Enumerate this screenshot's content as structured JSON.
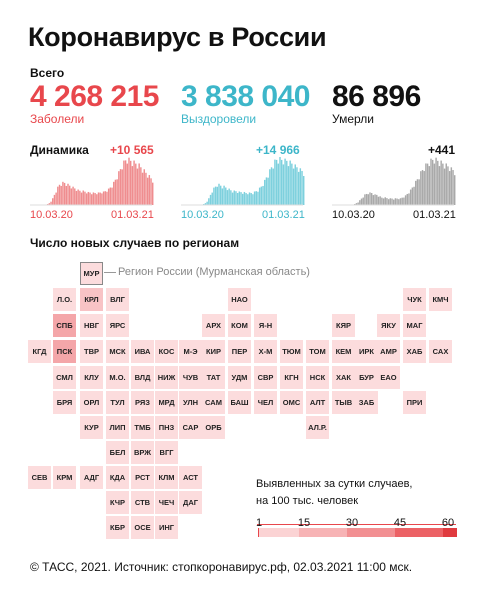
{
  "title": "Коронавирус в России",
  "total_label": "Всего",
  "stats": {
    "cases": {
      "value": "4 268 215",
      "label": "Заболели",
      "color": "#e8474c"
    },
    "recovered": {
      "value": "3 838 040",
      "label": "Выздоровели",
      "color": "#3db6c9"
    },
    "deaths": {
      "value": "86 896",
      "label": "Умерли",
      "color": "#111111"
    }
  },
  "dynamics": {
    "label": "Динамика",
    "cases_delta": "+10 565",
    "recovered_delta": "+14 966",
    "deaths_delta": "+441",
    "date_start": "10.03.20",
    "date_end": "01.03.21"
  },
  "regions_title": "Число новых случаев по регионам",
  "murmansk_note": "Регион России (Мурманская область)",
  "legend": {
    "line1": "Выявленных за сутки случаев,",
    "line2": "на 100 тыс. человек",
    "ticks": [
      "1",
      "15",
      "30",
      "45",
      "60"
    ]
  },
  "footer": "© ТАСС, 2021. Источник: стопкоронавирус.рф, 02.03.2021 11:00 мск.",
  "chart_data": {
    "type": "area",
    "charts": [
      {
        "name": "Заболели",
        "color": "#ef8d8f",
        "x_start": "10.03.20",
        "x_end": "01.03.21",
        "last_value_label": "+10 565",
        "values": [
          0,
          0,
          0,
          0,
          0,
          0,
          0,
          0,
          0,
          0,
          2,
          4,
          8,
          14,
          22,
          30,
          38,
          44,
          46,
          48,
          48,
          46,
          44,
          42,
          40,
          38,
          36,
          34,
          32,
          31,
          30,
          30,
          29,
          28,
          27,
          27,
          26,
          26,
          26,
          26,
          26,
          27,
          28,
          28,
          30,
          32,
          34,
          38,
          42,
          48,
          55,
          62,
          70,
          78,
          86,
          92,
          97,
          100,
          98,
          96,
          94,
          92,
          90,
          88,
          86,
          82,
          78,
          74,
          70,
          66,
          62,
          58,
          54
        ]
      },
      {
        "name": "Выздоровели",
        "color": "#7dd0dd",
        "x_start": "10.03.20",
        "x_end": "01.03.21",
        "last_value_label": "+14 966",
        "values": [
          0,
          0,
          0,
          0,
          0,
          0,
          0,
          0,
          0,
          0,
          0,
          0,
          1,
          2,
          4,
          8,
          14,
          22,
          30,
          36,
          40,
          44,
          44,
          42,
          40,
          40,
          38,
          36,
          34,
          32,
          30,
          30,
          30,
          29,
          28,
          28,
          27,
          27,
          26,
          26,
          26,
          26,
          26,
          28,
          30,
          32,
          36,
          40,
          46,
          52,
          60,
          66,
          74,
          82,
          88,
          94,
          98,
          100,
          100,
          98,
          98,
          96,
          96,
          94,
          92,
          90,
          88,
          84,
          82,
          80,
          76,
          74,
          70
        ]
      },
      {
        "name": "Умерли",
        "color": "#a9a9a9",
        "x_start": "10.03.20",
        "x_end": "01.03.21",
        "last_value_label": "+441",
        "values": [
          0,
          0,
          0,
          0,
          0,
          0,
          0,
          0,
          0,
          0,
          0,
          0,
          1,
          2,
          4,
          6,
          10,
          14,
          18,
          22,
          24,
          26,
          26,
          26,
          24,
          22,
          22,
          20,
          18,
          16,
          16,
          16,
          15,
          14,
          14,
          14,
          13,
          14,
          14,
          14,
          14,
          16,
          18,
          20,
          24,
          28,
          32,
          38,
          44,
          50,
          56,
          62,
          70,
          76,
          82,
          86,
          90,
          94,
          96,
          98,
          100,
          98,
          96,
          94,
          92,
          90,
          88,
          86,
          84,
          82,
          78,
          76,
          72
        ]
      }
    ]
  },
  "regions": [
    {
      "code": "МУР",
      "highlight": true,
      "level": "c"
    },
    {
      "code": "Л.О.",
      "level": "c"
    },
    {
      "code": "КРЛ",
      "level": "b"
    },
    {
      "code": "ВЛГ",
      "level": "c"
    },
    {
      "code": "НАО",
      "level": "c"
    },
    {
      "code": "ЧУК",
      "level": "c"
    },
    {
      "code": "КМЧ",
      "level": "c"
    },
    {
      "code": "СПБ",
      "level": "a"
    },
    {
      "code": "НВГ",
      "level": "c"
    },
    {
      "code": "ЯРС",
      "level": "c"
    },
    {
      "code": "АРХ",
      "level": "c"
    },
    {
      "code": "КОМ",
      "level": "c"
    },
    {
      "code": "Я-Н",
      "level": "c"
    },
    {
      "code": "КЯР",
      "level": "c"
    },
    {
      "code": "ЯКУ",
      "level": "c"
    },
    {
      "code": "МАГ",
      "level": "c"
    },
    {
      "code": "КГД",
      "level": "c"
    },
    {
      "code": "ПСК",
      "level": "a"
    },
    {
      "code": "ТВР",
      "level": "c"
    },
    {
      "code": "МСК",
      "level": "c"
    },
    {
      "code": "ИВА",
      "level": "c"
    },
    {
      "code": "КОС",
      "level": "c"
    },
    {
      "code": "М-Э",
      "level": "c"
    },
    {
      "code": "КИР",
      "level": "c"
    },
    {
      "code": "ПЕР",
      "level": "c"
    },
    {
      "code": "Х-М",
      "level": "c"
    },
    {
      "code": "ТЮМ",
      "level": "c"
    },
    {
      "code": "ТОМ",
      "level": "c"
    },
    {
      "code": "КЕМ",
      "level": "c"
    },
    {
      "code": "ИРК",
      "level": "c"
    },
    {
      "code": "АМР",
      "level": "c"
    },
    {
      "code": "ХАБ",
      "level": "c"
    },
    {
      "code": "САХ",
      "level": "c"
    },
    {
      "code": "СМЛ",
      "level": "c"
    },
    {
      "code": "КЛУ",
      "level": "c"
    },
    {
      "code": "М.О.",
      "level": "c"
    },
    {
      "code": "ВЛД",
      "level": "c"
    },
    {
      "code": "НИЖ",
      "level": "c"
    },
    {
      "code": "ЧУВ",
      "level": "c"
    },
    {
      "code": "ТАТ",
      "level": "c"
    },
    {
      "code": "УДМ",
      "level": "c"
    },
    {
      "code": "СВР",
      "level": "c"
    },
    {
      "code": "КГН",
      "level": "c"
    },
    {
      "code": "НСК",
      "level": "c"
    },
    {
      "code": "ХАК",
      "level": "c"
    },
    {
      "code": "БУР",
      "level": "c"
    },
    {
      "code": "ЕАО",
      "level": "c"
    },
    {
      "code": "БРЯ",
      "level": "c"
    },
    {
      "code": "ОРЛ",
      "level": "c"
    },
    {
      "code": "ТУЛ",
      "level": "c"
    },
    {
      "code": "РЯЗ",
      "level": "c"
    },
    {
      "code": "МРД",
      "level": "c"
    },
    {
      "code": "УЛН",
      "level": "c"
    },
    {
      "code": "САМ",
      "level": "c"
    },
    {
      "code": "БАШ",
      "level": "c"
    },
    {
      "code": "ЧЕЛ",
      "level": "c"
    },
    {
      "code": "ОМС",
      "level": "c"
    },
    {
      "code": "АЛТ",
      "level": "c"
    },
    {
      "code": "ТЫВ",
      "level": "c"
    },
    {
      "code": "ЗАБ",
      "level": "c"
    },
    {
      "code": "ПРИ",
      "level": "c"
    },
    {
      "code": "КУР",
      "level": "c"
    },
    {
      "code": "ЛИП",
      "level": "c"
    },
    {
      "code": "ТМБ",
      "level": "c"
    },
    {
      "code": "ПНЗ",
      "level": "c"
    },
    {
      "code": "САР",
      "level": "c"
    },
    {
      "code": "ОРБ",
      "level": "c"
    },
    {
      "code": "АЛ.Р.",
      "level": "c"
    },
    {
      "code": "БЕЛ",
      "level": "c"
    },
    {
      "code": "ВРЖ",
      "level": "c"
    },
    {
      "code": "ВГГ",
      "level": "c"
    },
    {
      "code": "СЕВ",
      "level": "c"
    },
    {
      "code": "КРМ",
      "level": "c"
    },
    {
      "code": "АДГ",
      "level": "c"
    },
    {
      "code": "КДА",
      "level": "c"
    },
    {
      "code": "РСТ",
      "level": "c"
    },
    {
      "code": "КЛМ",
      "level": "c"
    },
    {
      "code": "АСТ",
      "level": "c"
    },
    {
      "code": "КЧР",
      "level": "c"
    },
    {
      "code": "СТВ",
      "level": "c"
    },
    {
      "code": "ЧЕЧ",
      "level": "c"
    },
    {
      "code": "ДАГ",
      "level": "c"
    },
    {
      "code": "КБР",
      "level": "c"
    },
    {
      "code": "ОСЕ",
      "level": "c"
    },
    {
      "code": "ИНГ",
      "level": "c"
    }
  ]
}
